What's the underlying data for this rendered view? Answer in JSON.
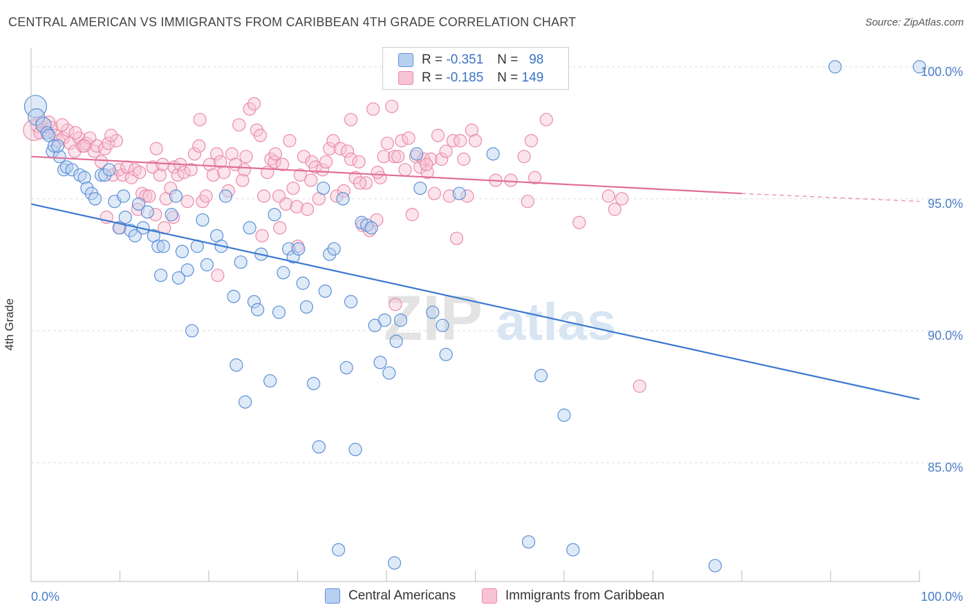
{
  "title": "CENTRAL AMERICAN VS IMMIGRANTS FROM CARIBBEAN 4TH GRADE CORRELATION CHART",
  "source": "Source: ZipAtlas.com",
  "watermark": {
    "zip": "ZIP",
    "atlas": "atlas"
  },
  "legend": {
    "r_label": "R =",
    "n_label": "N =",
    "rows": [
      {
        "r": "-0.351",
        "n": "98"
      },
      {
        "r": "-0.185",
        "n": "149"
      }
    ]
  },
  "colors": {
    "blue": "#5b8fd6",
    "blue_fill": "#b8d0f0",
    "blue_line": "#3a78d0",
    "pink": "#ea8aaa",
    "pink_fill": "#f6c3d4",
    "pink_line": "#e06d98",
    "axis_label": "#4a7cc7"
  },
  "chart_data": {
    "type": "scatter",
    "title": "CENTRAL AMERICAN VS IMMIGRANTS FROM CARIBBEAN 4TH GRADE CORRELATION CHART",
    "xlabel": "",
    "ylabel": "4th Grade",
    "xlim": [
      0,
      100
    ],
    "ylim": [
      80.5,
      100.7
    ],
    "x_tick_labels": [
      "0.0%",
      "100.0%"
    ],
    "y_ticks": [
      {
        "value": 100,
        "label": "100.0%"
      },
      {
        "value": 95,
        "label": "95.0%"
      },
      {
        "value": 90,
        "label": "90.0%"
      },
      {
        "value": 85,
        "label": "85.0%"
      }
    ],
    "grid": "horizontal dashed",
    "legend_placement": "top-center",
    "series": [
      {
        "name": "Central Americans",
        "r": -0.351,
        "n": 98,
        "trend": {
          "x": [
            0,
            100
          ],
          "y": [
            94.8,
            87.4
          ]
        },
        "points": [
          [
            0.5,
            98.5
          ],
          [
            0.6,
            98.1
          ],
          [
            1.4,
            97.8
          ],
          [
            1.8,
            97.5
          ],
          [
            2.0,
            97.4
          ],
          [
            2.4,
            96.8
          ],
          [
            2.6,
            97.0
          ],
          [
            3.2,
            96.6
          ],
          [
            3.7,
            96.1
          ],
          [
            4.0,
            96.2
          ],
          [
            4.6,
            96.1
          ],
          [
            5.5,
            95.9
          ],
          [
            6.0,
            95.8
          ],
          [
            6.3,
            95.4
          ],
          [
            6.8,
            95.2
          ],
          [
            7.2,
            95.0
          ],
          [
            7.9,
            95.9
          ],
          [
            8.3,
            95.9
          ],
          [
            8.8,
            96.1
          ],
          [
            9.4,
            94.9
          ],
          [
            9.9,
            93.9
          ],
          [
            10.4,
            95.1
          ],
          [
            10.6,
            94.3
          ],
          [
            11.2,
            93.8
          ],
          [
            11.7,
            93.6
          ],
          [
            12.1,
            94.8
          ],
          [
            12.6,
            93.9
          ],
          [
            13.1,
            94.5
          ],
          [
            13.8,
            93.6
          ],
          [
            14.3,
            93.2
          ],
          [
            14.6,
            92.1
          ],
          [
            14.9,
            93.2
          ],
          [
            15.8,
            94.4
          ],
          [
            16.3,
            95.1
          ],
          [
            16.6,
            92.0
          ],
          [
            17.0,
            93.0
          ],
          [
            17.6,
            92.3
          ],
          [
            18.1,
            90.0
          ],
          [
            18.7,
            93.2
          ],
          [
            19.3,
            94.2
          ],
          [
            19.8,
            92.5
          ],
          [
            20.9,
            93.6
          ],
          [
            21.4,
            93.2
          ],
          [
            21.9,
            95.1
          ],
          [
            22.8,
            91.3
          ],
          [
            23.1,
            88.7
          ],
          [
            23.6,
            92.6
          ],
          [
            24.1,
            87.3
          ],
          [
            24.6,
            93.9
          ],
          [
            25.1,
            91.1
          ],
          [
            25.5,
            90.8
          ],
          [
            25.9,
            92.9
          ],
          [
            26.9,
            88.1
          ],
          [
            27.4,
            94.4
          ],
          [
            27.9,
            90.7
          ],
          [
            28.4,
            92.2
          ],
          [
            29.0,
            93.1
          ],
          [
            29.5,
            92.8
          ],
          [
            30.1,
            93.1
          ],
          [
            30.6,
            91.8
          ],
          [
            31.0,
            90.9
          ],
          [
            31.8,
            88.0
          ],
          [
            32.4,
            85.6
          ],
          [
            32.9,
            95.4
          ],
          [
            33.1,
            91.5
          ],
          [
            33.6,
            92.9
          ],
          [
            34.1,
            93.1
          ],
          [
            34.6,
            81.7
          ],
          [
            35.1,
            95.0
          ],
          [
            35.5,
            88.6
          ],
          [
            36.0,
            91.1
          ],
          [
            36.5,
            85.5
          ],
          [
            37.2,
            94.1
          ],
          [
            37.8,
            94.0
          ],
          [
            38.3,
            93.9
          ],
          [
            38.7,
            90.2
          ],
          [
            39.3,
            88.8
          ],
          [
            39.8,
            90.4
          ],
          [
            40.3,
            88.4
          ],
          [
            40.9,
            81.2
          ],
          [
            41.1,
            89.6
          ],
          [
            41.6,
            90.4
          ],
          [
            43.4,
            96.7
          ],
          [
            43.8,
            95.4
          ],
          [
            45.2,
            90.7
          ],
          [
            46.3,
            90.2
          ],
          [
            46.7,
            89.1
          ],
          [
            48.2,
            95.2
          ],
          [
            49.6,
            100.0
          ],
          [
            52.0,
            96.7
          ],
          [
            57.4,
            88.3
          ],
          [
            60.0,
            86.8
          ],
          [
            61.0,
            81.7
          ],
          [
            77.0,
            81.1
          ],
          [
            90.5,
            100.0
          ],
          [
            100.0,
            100.0
          ],
          [
            56.0,
            82.0
          ],
          [
            3.0,
            97.0
          ]
        ],
        "radii": {
          "0": 16,
          "1": 12,
          "2": 11
        }
      },
      {
        "name": "Immigrants from Caribbean",
        "r": -0.185,
        "n": 149,
        "trend": {
          "x": [
            0,
            80
          ],
          "y": [
            96.6,
            95.2
          ],
          "dashed_to": {
            "x": 100,
            "y": 94.9
          }
        },
        "points": [
          [
            0.3,
            97.6
          ],
          [
            0.8,
            97.8
          ],
          [
            1.2,
            97.9
          ],
          [
            1.7,
            97.6
          ],
          [
            2.3,
            97.7
          ],
          [
            2.7,
            97.4
          ],
          [
            3.1,
            97.2
          ],
          [
            3.6,
            97.3
          ],
          [
            4.1,
            97.6
          ],
          [
            4.4,
            97.1
          ],
          [
            4.9,
            96.8
          ],
          [
            5.4,
            97.3
          ],
          [
            5.8,
            97.0
          ],
          [
            6.2,
            97.1
          ],
          [
            6.6,
            97.3
          ],
          [
            7.1,
            96.8
          ],
          [
            7.4,
            97.0
          ],
          [
            7.9,
            96.4
          ],
          [
            8.3,
            96.9
          ],
          [
            8.7,
            97.1
          ],
          [
            9.2,
            95.9
          ],
          [
            9.6,
            97.2
          ],
          [
            9.9,
            96.1
          ],
          [
            10.3,
            95.9
          ],
          [
            10.8,
            96.2
          ],
          [
            11.3,
            95.8
          ],
          [
            11.7,
            96.1
          ],
          [
            12.2,
            96.0
          ],
          [
            12.5,
            95.2
          ],
          [
            12.9,
            95.1
          ],
          [
            13.3,
            95.1
          ],
          [
            13.7,
            96.2
          ],
          [
            14.1,
            96.9
          ],
          [
            14.5,
            95.9
          ],
          [
            14.8,
            96.3
          ],
          [
            15.2,
            95.0
          ],
          [
            15.7,
            95.4
          ],
          [
            16.1,
            96.2
          ],
          [
            16.5,
            95.9
          ],
          [
            16.8,
            96.3
          ],
          [
            17.2,
            96.0
          ],
          [
            17.6,
            94.9
          ],
          [
            18.0,
            96.1
          ],
          [
            18.4,
            96.7
          ],
          [
            18.9,
            97.0
          ],
          [
            19.3,
            94.9
          ],
          [
            19.7,
            95.1
          ],
          [
            20.1,
            96.3
          ],
          [
            20.5,
            95.9
          ],
          [
            20.9,
            96.7
          ],
          [
            21.3,
            96.4
          ],
          [
            21.7,
            96.0
          ],
          [
            22.2,
            95.3
          ],
          [
            22.6,
            96.7
          ],
          [
            23.0,
            96.3
          ],
          [
            23.4,
            97.8
          ],
          [
            23.8,
            95.7
          ],
          [
            24.2,
            96.6
          ],
          [
            24.6,
            98.4
          ],
          [
            25.1,
            98.6
          ],
          [
            25.4,
            97.6
          ],
          [
            25.8,
            97.4
          ],
          [
            26.2,
            95.1
          ],
          [
            26.6,
            96.0
          ],
          [
            27.0,
            96.5
          ],
          [
            27.4,
            96.4
          ],
          [
            27.9,
            95.1
          ],
          [
            28.3,
            96.3
          ],
          [
            28.7,
            94.8
          ],
          [
            29.1,
            97.2
          ],
          [
            29.5,
            95.4
          ],
          [
            29.9,
            94.7
          ],
          [
            30.3,
            95.9
          ],
          [
            30.7,
            96.6
          ],
          [
            31.1,
            94.6
          ],
          [
            31.6,
            96.4
          ],
          [
            32.0,
            96.2
          ],
          [
            32.4,
            95.0
          ],
          [
            32.8,
            96.1
          ],
          [
            33.2,
            96.4
          ],
          [
            33.6,
            96.9
          ],
          [
            34.0,
            97.2
          ],
          [
            34.4,
            95.1
          ],
          [
            34.8,
            96.9
          ],
          [
            35.2,
            95.3
          ],
          [
            35.6,
            96.8
          ],
          [
            36.0,
            96.5
          ],
          [
            36.5,
            95.8
          ],
          [
            36.9,
            96.4
          ],
          [
            37.3,
            94.0
          ],
          [
            37.7,
            95.6
          ],
          [
            38.1,
            93.8
          ],
          [
            38.5,
            98.4
          ],
          [
            38.9,
            94.2
          ],
          [
            39.3,
            95.8
          ],
          [
            39.7,
            96.6
          ],
          [
            40.1,
            97.1
          ],
          [
            40.6,
            98.5
          ],
          [
            40.9,
            96.6
          ],
          [
            41.3,
            96.6
          ],
          [
            41.7,
            97.2
          ],
          [
            42.1,
            96.1
          ],
          [
            42.5,
            97.3
          ],
          [
            42.9,
            94.4
          ],
          [
            43.3,
            96.6
          ],
          [
            43.8,
            96.2
          ],
          [
            44.2,
            96.5
          ],
          [
            44.6,
            96.0
          ],
          [
            45.0,
            96.5
          ],
          [
            45.4,
            95.2
          ],
          [
            45.8,
            97.4
          ],
          [
            46.2,
            96.5
          ],
          [
            46.7,
            96.8
          ],
          [
            47.1,
            95.1
          ],
          [
            47.5,
            97.2
          ],
          [
            47.9,
            93.5
          ],
          [
            48.3,
            97.2
          ],
          [
            48.7,
            96.5
          ],
          [
            49.1,
            95.1
          ],
          [
            49.6,
            97.6
          ],
          [
            50.0,
            97.2
          ],
          [
            52.3,
            95.7
          ],
          [
            54.0,
            95.7
          ],
          [
            55.5,
            96.6
          ],
          [
            55.9,
            94.9
          ],
          [
            56.3,
            97.2
          ],
          [
            56.7,
            95.8
          ],
          [
            58.0,
            98.0
          ],
          [
            61.7,
            94.1
          ],
          [
            65.0,
            95.1
          ],
          [
            65.7,
            94.6
          ],
          [
            66.5,
            95.0
          ],
          [
            68.5,
            87.9
          ],
          [
            51.0,
            100.0
          ],
          [
            36.0,
            98.0
          ],
          [
            19.0,
            98.0
          ],
          [
            9.0,
            97.4
          ],
          [
            14.0,
            94.4
          ],
          [
            6.0,
            97.0
          ],
          [
            8.5,
            94.3
          ],
          [
            10.0,
            93.9
          ],
          [
            12.0,
            94.6
          ],
          [
            15.0,
            93.9
          ],
          [
            16.0,
            94.3
          ],
          [
            21.0,
            92.1
          ],
          [
            26.0,
            93.6
          ],
          [
            28.0,
            93.9
          ],
          [
            30.0,
            93.2
          ],
          [
            41.0,
            91.0
          ],
          [
            37.0,
            95.6
          ],
          [
            3.5,
            97.8
          ],
          [
            5.0,
            97.5
          ],
          [
            2.0,
            97.9
          ],
          [
            1.0,
            97.5
          ],
          [
            24.0,
            96.1
          ],
          [
            27.5,
            96.7
          ],
          [
            31.5,
            95.7
          ],
          [
            39.0,
            96.0
          ],
          [
            44.5,
            96.3
          ]
        ],
        "radii": {
          "0": 15,
          "1": 11
        }
      }
    ]
  },
  "bottom_legend": [
    {
      "label": "Central Americans"
    },
    {
      "label": "Immigrants from Caribbean"
    }
  ]
}
